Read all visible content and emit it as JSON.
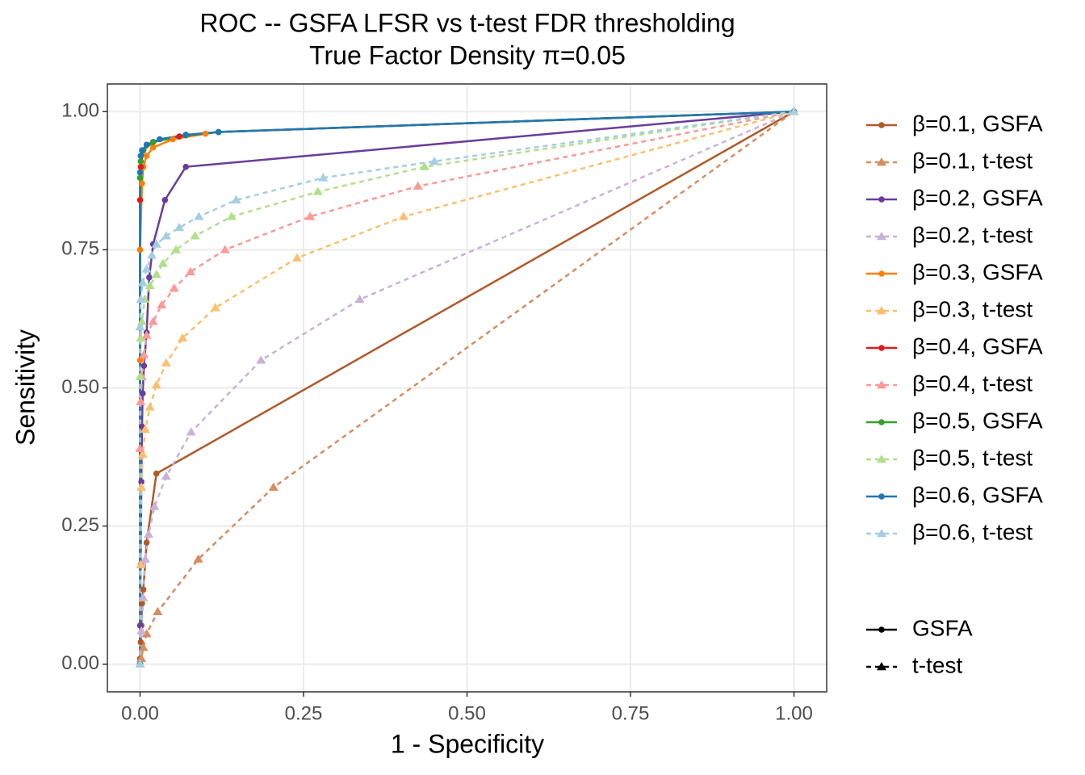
{
  "chart_data": {
    "type": "line",
    "title": "ROC -- GSFA LFSR vs t-test FDR thresholding",
    "subtitle": "True Factor Density π=0.05",
    "x_label": "1 - Specificity",
    "y_label": "Sensitivity",
    "xlim": [
      -0.05,
      1.05
    ],
    "ylim": [
      -0.05,
      1.05
    ],
    "xticks": [
      {
        "value": 0,
        "label": "0.00"
      },
      {
        "value": 0.25,
        "label": "0.25"
      },
      {
        "value": 0.5,
        "label": "0.50"
      },
      {
        "value": 0.75,
        "label": "0.75"
      },
      {
        "value": 1,
        "label": "1.00"
      }
    ],
    "yticks": [
      {
        "value": 0,
        "label": "0.00"
      },
      {
        "value": 0.25,
        "label": "0.25"
      },
      {
        "value": 0.5,
        "label": "0.50"
      },
      {
        "value": 0.75,
        "label": "0.75"
      },
      {
        "value": 1,
        "label": "1.00"
      }
    ],
    "grid": true,
    "series": [
      {
        "name": "β=0.1, GSFA",
        "color": "#B15928",
        "linestyle": "solid",
        "marker": "circle",
        "x": [
          0,
          0,
          0.001,
          0.002,
          0.003,
          0.005,
          0.01,
          0.025,
          1
        ],
        "values": [
          0,
          0.01,
          0.04,
          0.07,
          0.11,
          0.135,
          0.22,
          0.345,
          1
        ]
      },
      {
        "name": "β=0.1, t-test",
        "color": "#D98C5F",
        "linestyle": "dashed",
        "marker": "triangle",
        "x": [
          0,
          0.002,
          0.005,
          0.01,
          0.027,
          0.089,
          0.204,
          1
        ],
        "values": [
          0,
          0.01,
          0.03,
          0.055,
          0.095,
          0.19,
          0.32,
          1
        ]
      },
      {
        "name": "β=0.2, GSFA",
        "color": "#6A3D9A",
        "linestyle": "solid",
        "marker": "circle",
        "x": [
          0,
          0,
          0.001,
          0.002,
          0.003,
          0.004,
          0.006,
          0.01,
          0.014,
          0.02,
          0.038,
          0.07,
          1
        ],
        "values": [
          0,
          0.07,
          0.18,
          0.33,
          0.43,
          0.49,
          0.54,
          0.6,
          0.7,
          0.76,
          0.84,
          0.9,
          1
        ]
      },
      {
        "name": "β=0.2, t-test",
        "color": "#CAB2D6",
        "linestyle": "dashed",
        "marker": "triangle",
        "x": [
          0,
          0.002,
          0.005,
          0.008,
          0.013,
          0.022,
          0.04,
          0.078,
          0.185,
          0.336,
          1
        ],
        "values": [
          0,
          0.06,
          0.12,
          0.19,
          0.235,
          0.285,
          0.34,
          0.42,
          0.55,
          0.66,
          1
        ]
      },
      {
        "name": "β=0.3, GSFA",
        "color": "#FF7F00",
        "linestyle": "solid",
        "marker": "circle",
        "x": [
          0,
          0,
          0,
          0.003,
          0.005,
          0.01,
          0.02,
          0.05,
          0.1,
          0.12,
          1
        ],
        "values": [
          0,
          0.55,
          0.75,
          0.87,
          0.9,
          0.92,
          0.935,
          0.95,
          0.96,
          0.963,
          1
        ]
      },
      {
        "name": "β=0.3, t-test",
        "color": "#FDBF6F",
        "linestyle": "dashed",
        "marker": "triangle",
        "x": [
          0,
          0.001,
          0.002,
          0.004,
          0.008,
          0.015,
          0.025,
          0.04,
          0.065,
          0.115,
          0.24,
          0.403,
          1
        ],
        "values": [
          0,
          0.18,
          0.32,
          0.38,
          0.425,
          0.465,
          0.505,
          0.545,
          0.59,
          0.645,
          0.735,
          0.81,
          1
        ]
      },
      {
        "name": "β=0.4, GSFA",
        "color": "#E31A1C",
        "linestyle": "solid",
        "marker": "circle",
        "x": [
          0,
          0,
          0.001,
          0.005,
          0.02,
          0.06,
          0.12,
          1
        ],
        "values": [
          0,
          0.84,
          0.9,
          0.93,
          0.945,
          0.955,
          0.963,
          1
        ]
      },
      {
        "name": "β=0.4, t-test",
        "color": "#FB9A99",
        "linestyle": "dashed",
        "marker": "triangle",
        "x": [
          0,
          0,
          0.001,
          0.003,
          0.006,
          0.01,
          0.02,
          0.033,
          0.052,
          0.077,
          0.13,
          0.26,
          0.425,
          1
        ],
        "values": [
          0,
          0.39,
          0.475,
          0.52,
          0.56,
          0.595,
          0.62,
          0.65,
          0.68,
          0.71,
          0.75,
          0.81,
          0.865,
          1
        ]
      },
      {
        "name": "β=0.5, GSFA",
        "color": "#33A02C",
        "linestyle": "solid",
        "marker": "circle",
        "x": [
          0,
          0,
          0.001,
          0.005,
          0.02,
          0.07,
          0.12,
          1
        ],
        "values": [
          0,
          0.88,
          0.91,
          0.93,
          0.945,
          0.957,
          0.963,
          1
        ]
      },
      {
        "name": "β=0.5, t-test",
        "color": "#B2DF8A",
        "linestyle": "dashed",
        "marker": "triangle",
        "x": [
          0,
          0,
          0.001,
          0.003,
          0.007,
          0.015,
          0.025,
          0.035,
          0.055,
          0.084,
          0.14,
          0.272,
          0.435,
          1
        ],
        "values": [
          0,
          0.52,
          0.59,
          0.62,
          0.66,
          0.685,
          0.705,
          0.725,
          0.75,
          0.775,
          0.81,
          0.855,
          0.9,
          1
        ]
      },
      {
        "name": "β=0.6, GSFA",
        "color": "#1F78B4",
        "linestyle": "solid",
        "marker": "circle",
        "x": [
          0,
          0,
          0.001,
          0.003,
          0.01,
          0.03,
          0.07,
          0.12,
          1
        ],
        "values": [
          0,
          0.89,
          0.92,
          0.93,
          0.94,
          0.95,
          0.958,
          0.963,
          1
        ]
      },
      {
        "name": "β=0.6, t-test",
        "color": "#A6CEE3",
        "linestyle": "dashed",
        "marker": "triangle",
        "x": [
          0,
          0,
          0.001,
          0.004,
          0.01,
          0.018,
          0.025,
          0.04,
          0.06,
          0.09,
          0.147,
          0.28,
          0.45,
          1
        ],
        "values": [
          0,
          0.61,
          0.66,
          0.69,
          0.715,
          0.74,
          0.76,
          0.775,
          0.79,
          0.81,
          0.84,
          0.88,
          0.91,
          1
        ]
      }
    ],
    "linetype_legend": [
      {
        "name": "GSFA",
        "linestyle": "solid",
        "marker": "circle"
      },
      {
        "name": "t-test",
        "linestyle": "dashed",
        "marker": "triangle"
      }
    ]
  }
}
